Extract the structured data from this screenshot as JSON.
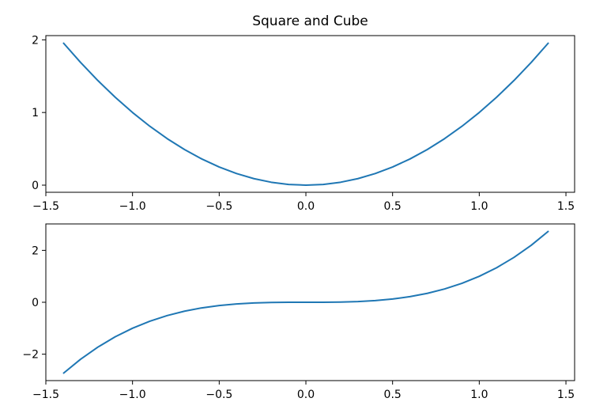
{
  "chart_data": [
    {
      "type": "line",
      "title": "Square and Cube",
      "xlabel": "",
      "ylabel": "",
      "xlim": [
        -1.5,
        1.55
      ],
      "ylim": [
        -0.098,
        2.058
      ],
      "x_ticks": [
        -1.5,
        -1.0,
        -0.5,
        0.0,
        0.5,
        1.0,
        1.5
      ],
      "x_tick_labels": [
        "−1.5",
        "−1.0",
        "−0.5",
        "0.0",
        "0.5",
        "1.0",
        "1.5"
      ],
      "y_ticks": [
        0,
        1,
        2
      ],
      "y_tick_labels": [
        "0",
        "1",
        "2"
      ],
      "grid": false,
      "legend": null,
      "series": [
        {
          "color": "#1f77b4",
          "x": [
            -1.4,
            -1.3,
            -1.2,
            -1.1,
            -1.0,
            -0.9,
            -0.8,
            -0.7,
            -0.6,
            -0.5,
            -0.4,
            -0.3,
            -0.2,
            -0.1,
            0.0,
            0.1,
            0.2,
            0.3,
            0.4,
            0.5,
            0.6,
            0.7,
            0.8,
            0.9,
            1.0,
            1.1,
            1.2,
            1.3,
            1.4
          ],
          "y": [
            1.96,
            1.69,
            1.44,
            1.21,
            1.0,
            0.81,
            0.64,
            0.49,
            0.36,
            0.25,
            0.16,
            0.09,
            0.04,
            0.01,
            0.0,
            0.01,
            0.04,
            0.09,
            0.16,
            0.25,
            0.36,
            0.49,
            0.64,
            0.81,
            1.0,
            1.21,
            1.44,
            1.69,
            1.96
          ]
        }
      ]
    },
    {
      "type": "line",
      "title": "",
      "xlabel": "",
      "ylabel": "",
      "xlim": [
        -1.5,
        1.55
      ],
      "ylim": [
        -3.018,
        3.018
      ],
      "x_ticks": [
        -1.5,
        -1.0,
        -0.5,
        0.0,
        0.5,
        1.0,
        1.5
      ],
      "x_tick_labels": [
        "−1.5",
        "−1.0",
        "−0.5",
        "0.0",
        "0.5",
        "1.0",
        "1.5"
      ],
      "y_ticks": [
        -2,
        0,
        2
      ],
      "y_tick_labels": [
        "−2",
        "0",
        "2"
      ],
      "grid": false,
      "legend": null,
      "series": [
        {
          "color": "#1f77b4",
          "x": [
            -1.4,
            -1.3,
            -1.2,
            -1.1,
            -1.0,
            -0.9,
            -0.8,
            -0.7,
            -0.6,
            -0.5,
            -0.4,
            -0.3,
            -0.2,
            -0.1,
            0.0,
            0.1,
            0.2,
            0.3,
            0.4,
            0.5,
            0.6,
            0.7,
            0.8,
            0.9,
            1.0,
            1.1,
            1.2,
            1.3,
            1.4
          ],
          "y": [
            -2.744,
            -2.197,
            -1.728,
            -1.331,
            -1.0,
            -0.729,
            -0.512,
            -0.343,
            -0.216,
            -0.125,
            -0.064,
            -0.027,
            -0.008,
            -0.001,
            0.0,
            0.001,
            0.008,
            0.027,
            0.064,
            0.125,
            0.216,
            0.343,
            0.512,
            0.729,
            1.0,
            1.331,
            1.728,
            2.197,
            2.744
          ]
        }
      ]
    }
  ]
}
